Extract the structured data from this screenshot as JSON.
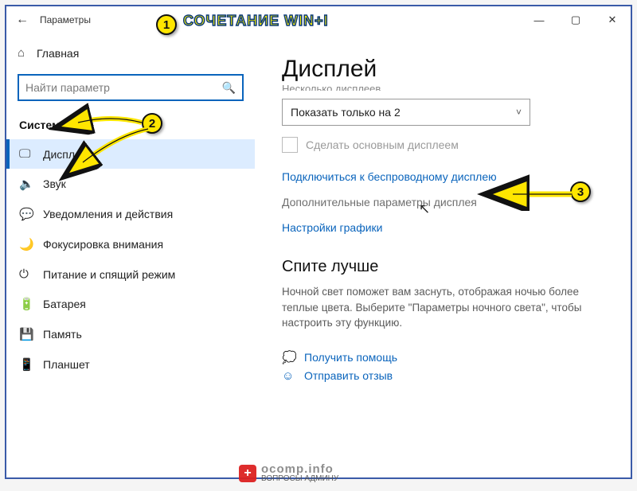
{
  "window": {
    "title": "Параметры"
  },
  "sidebar": {
    "home_label": "Главная",
    "search_placeholder": "Найти параметр",
    "section_label": "Система",
    "items": [
      {
        "icon": "🖵",
        "label": "Дисплей",
        "active": true
      },
      {
        "icon": "🔈",
        "label": "Звук"
      },
      {
        "icon": "💬",
        "label": "Уведомления и действия"
      },
      {
        "icon": "🌙",
        "label": "Фокусировка внимания"
      },
      {
        "icon": "⏻",
        "label": "Питание и спящий режим"
      },
      {
        "icon": "🔋",
        "label": "Батарея"
      },
      {
        "icon": "💾",
        "label": "Память"
      },
      {
        "icon": "📱",
        "label": "Планшет"
      }
    ]
  },
  "page": {
    "title": "Дисплей",
    "cut_subhead": "Несколько дисплеев",
    "dropdown_value": "Показать только на 2",
    "checkbox_label": "Сделать основным дисплеем",
    "link_wireless": "Подключиться к беспроводному дисплею",
    "link_advanced": "Дополнительные параметры дисплея",
    "link_graphics": "Настройки графики",
    "sleep_heading": "Спите лучше",
    "sleep_body": "Ночной свет поможет вам заснуть, отображая ночью более теплые цвета. Выберите \"Параметры ночного света\", чтобы настроить эту функцию.",
    "help_link": "Получить помощь",
    "feedback_link": "Отправить отзыв"
  },
  "annotations": {
    "badge1": "1",
    "badge2": "2",
    "badge3": "3",
    "text1": "СОЧЕТАНИЕ  WIN+I"
  },
  "watermark": {
    "brand": "ocomp.info",
    "tag": "ВОПРОСЫ АДМИНУ"
  },
  "colors": {
    "accent": "#0a64bc",
    "window_border": "#3a5aa8",
    "badge_fill": "#ffe600"
  }
}
